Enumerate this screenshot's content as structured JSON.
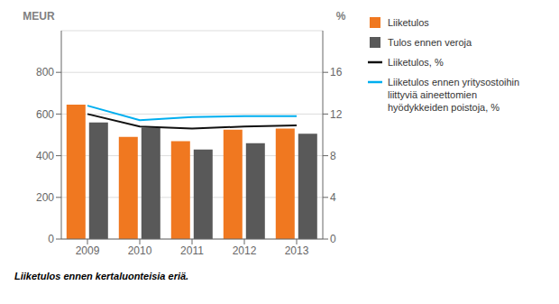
{
  "chart_data": {
    "type": "bar",
    "categories": [
      "2009",
      "2010",
      "2011",
      "2012",
      "2013"
    ],
    "series": [
      {
        "name": "Liiketulos",
        "type": "bar",
        "color": "#F07820",
        "values": [
          645,
          490,
          470,
          525,
          530
        ]
      },
      {
        "name": "Tulos ennen veroja",
        "type": "bar",
        "color": "#595959",
        "values": [
          560,
          535,
          430,
          460,
          505
        ]
      },
      {
        "name": "Liiketulos, %",
        "type": "line",
        "axis": "y2",
        "color": "#111111",
        "values": [
          12.0,
          10.8,
          10.6,
          10.8,
          10.9
        ]
      },
      {
        "name": "Liiketulos ennen yritysostoihin\nliittyviä aineettomien\nhyödykkeiden poistoja, %",
        "type": "line",
        "axis": "y2",
        "color": "#00AEEF",
        "values": [
          12.8,
          11.4,
          11.7,
          11.8,
          11.8
        ]
      }
    ],
    "ylabel": "MEUR",
    "y2label": "%",
    "ylim": [
      0,
      1000
    ],
    "yticks": [
      0,
      200,
      400,
      600,
      800
    ],
    "y2lim": [
      0,
      20
    ],
    "y2ticks": [
      0,
      4,
      8,
      12,
      16
    ],
    "grid": true,
    "legend": "right",
    "annotations": [
      "Liiketulos ennen kertaluonteisia eriä."
    ]
  }
}
